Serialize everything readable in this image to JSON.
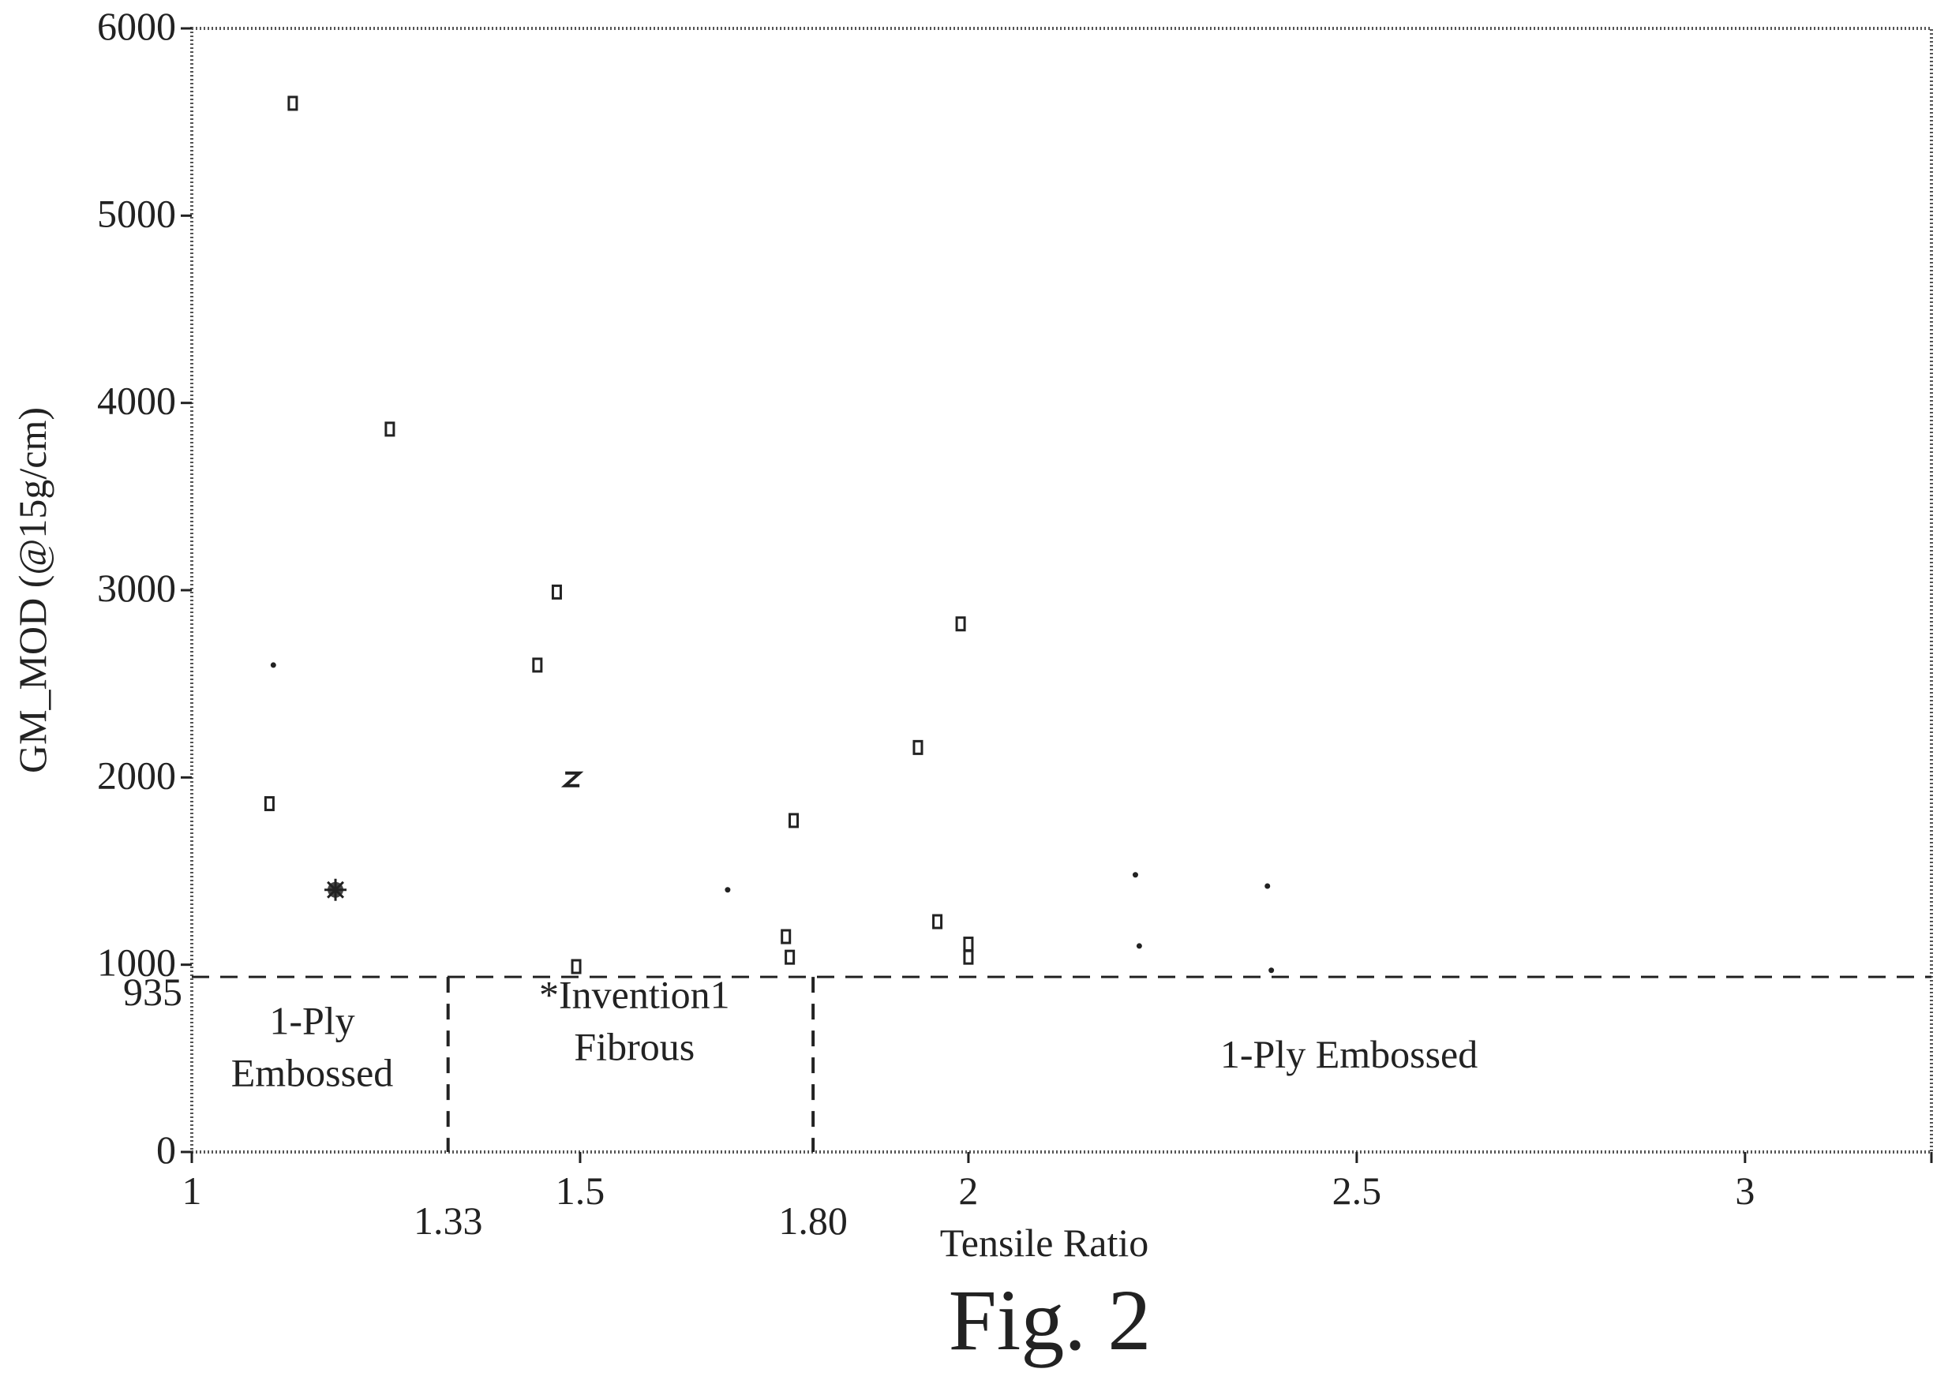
{
  "chart_data": {
    "type": "scatter",
    "title": "",
    "caption": "Fig. 2",
    "xlabel": "Tensile Ratio",
    "ylabel": "GM_MOD (@15g/cm)",
    "xlim": [
      1,
      3.24
    ],
    "ylim": [
      0,
      6000
    ],
    "grid": false,
    "xticks": [
      {
        "value": 1,
        "label": "1",
        "row": 1
      },
      {
        "value": 1.33,
        "label": "1.33",
        "row": 2
      },
      {
        "value": 1.5,
        "label": "1.5",
        "row": 1
      },
      {
        "value": 1.8,
        "label": "1.80",
        "row": 2
      },
      {
        "value": 2,
        "label": "2",
        "row": 1
      },
      {
        "value": 2.5,
        "label": "2.5",
        "row": 1
      },
      {
        "value": 3,
        "label": "3",
        "row": 1
      }
    ],
    "yticks": [
      {
        "value": 0,
        "label": "0"
      },
      {
        "value": 1000,
        "label": "1000"
      },
      {
        "value": 2000,
        "label": "2000"
      },
      {
        "value": 3000,
        "label": "3000"
      },
      {
        "value": 4000,
        "label": "4000"
      },
      {
        "value": 5000,
        "label": "5000"
      },
      {
        "value": 6000,
        "label": "6000"
      }
    ],
    "reference_lines": {
      "horizontal": {
        "value": 935,
        "label": "935"
      },
      "vertical": [
        1.33,
        1.8
      ]
    },
    "regions": [
      {
        "lines": [
          "1-Ply",
          "Embossed"
        ],
        "x": 1.155,
        "y_top": 630
      },
      {
        "lines": [
          "*Invention1",
          "Fibrous"
        ],
        "x": 1.57,
        "y_top": 770
      },
      {
        "lines": [
          "1-Ply Embossed"
        ],
        "x": 2.49,
        "y_top": 450
      }
    ],
    "points": [
      {
        "x": 1.13,
        "y": 5600,
        "marker": "square"
      },
      {
        "x": 1.255,
        "y": 3860,
        "marker": "square"
      },
      {
        "x": 1.105,
        "y": 2600,
        "marker": "dot"
      },
      {
        "x": 1.1,
        "y": 1860,
        "marker": "square"
      },
      {
        "x": 1.185,
        "y": 1400,
        "marker": "burst"
      },
      {
        "x": 1.47,
        "y": 2990,
        "marker": "square"
      },
      {
        "x": 1.445,
        "y": 2600,
        "marker": "square"
      },
      {
        "x": 1.49,
        "y": 1990,
        "marker": "z"
      },
      {
        "x": 1.495,
        "y": 990,
        "marker": "square"
      },
      {
        "x": 1.69,
        "y": 1400,
        "marker": "dot"
      },
      {
        "x": 1.775,
        "y": 1770,
        "marker": "square"
      },
      {
        "x": 1.765,
        "y": 1150,
        "marker": "square"
      },
      {
        "x": 1.77,
        "y": 1040,
        "marker": "square"
      },
      {
        "x": 1.935,
        "y": 2160,
        "marker": "square"
      },
      {
        "x": 1.99,
        "y": 2820,
        "marker": "square"
      },
      {
        "x": 1.96,
        "y": 1230,
        "marker": "square"
      },
      {
        "x": 2.0,
        "y": 1110,
        "marker": "square"
      },
      {
        "x": 2.0,
        "y": 1040,
        "marker": "square"
      },
      {
        "x": 2.215,
        "y": 1480,
        "marker": "dot"
      },
      {
        "x": 2.22,
        "y": 1100,
        "marker": "dot"
      },
      {
        "x": 2.385,
        "y": 1420,
        "marker": "dot"
      },
      {
        "x": 2.39,
        "y": 970,
        "marker": "dot"
      }
    ]
  }
}
